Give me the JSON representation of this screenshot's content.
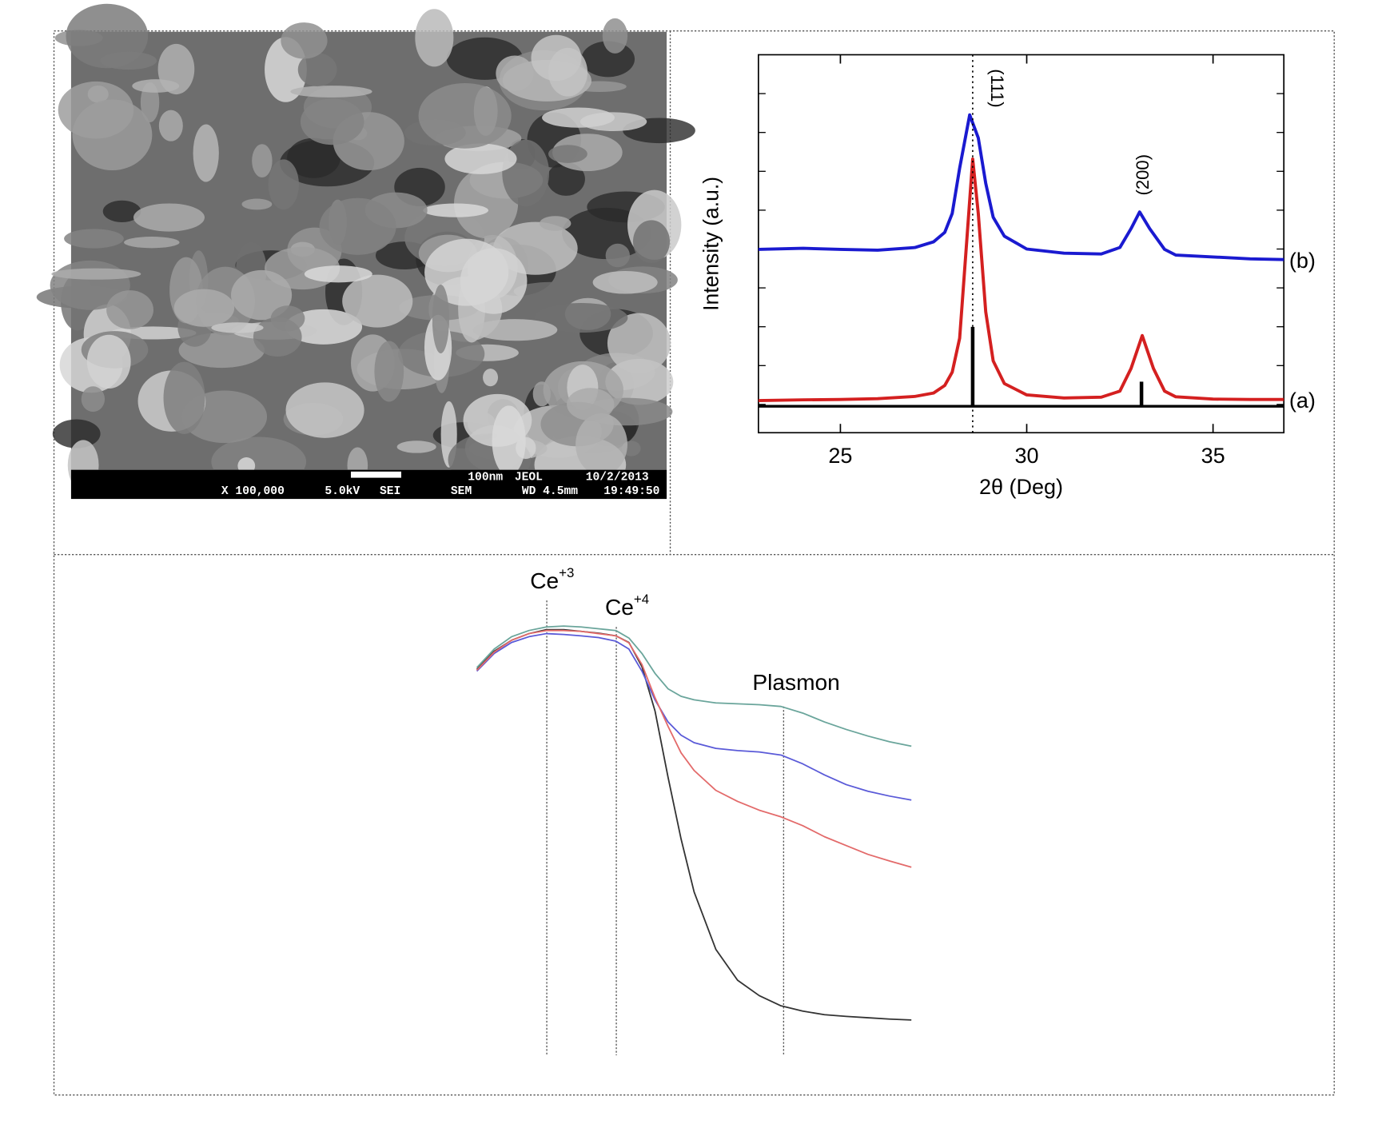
{
  "chart_data": [
    {
      "type": "line",
      "x_label": "2θ (Deg)",
      "y_label": "Intensity (a.u.)",
      "xlim": [
        22.8,
        36.9
      ],
      "ylim": [
        0,
        100
      ],
      "xticks": [
        25,
        30,
        35
      ],
      "series": [
        {
          "name": "(a)",
          "color": "#d42020",
          "x": [
            22.8,
            24,
            25,
            26,
            27,
            27.5,
            27.8,
            28,
            28.2,
            28.4,
            28.55,
            28.7,
            28.9,
            29.1,
            29.4,
            30,
            31,
            32,
            32.5,
            32.8,
            33.1,
            33.4,
            33.7,
            34,
            35,
            36,
            36.9
          ],
          "values": [
            8.5,
            8.7,
            8.8,
            9.0,
            9.6,
            10.5,
            12.5,
            16,
            25,
            52,
            72.4,
            58,
            32,
            19,
            13,
            10,
            9.2,
            9.4,
            11,
            17,
            25.7,
            17,
            11,
            9.5,
            8.9,
            8.8,
            8.8
          ]
        },
        {
          "name": "(b)",
          "color": "#1a1ad0",
          "x": [
            22.8,
            24,
            25,
            26,
            27,
            27.5,
            27.8,
            28,
            28.2,
            28.47,
            28.7,
            28.9,
            29.1,
            29.4,
            30,
            31,
            32,
            32.5,
            32.8,
            33.03,
            33.3,
            33.7,
            34,
            35,
            36,
            36.9
          ],
          "values": [
            48.5,
            48.8,
            48.5,
            48.3,
            49,
            50.5,
            53,
            58,
            70,
            84.1,
            78,
            66,
            57,
            52,
            48.6,
            47.5,
            47.3,
            49,
            54,
            58.4,
            54,
            48.5,
            47,
            46.5,
            46,
            45.8
          ]
        }
      ],
      "reference_lines": {
        "color": "#000000",
        "baseline": 7.0,
        "x": [
          28.55,
          33.08
        ],
        "values": [
          28,
          13.5
        ]
      },
      "annotations": [
        {
          "text": "(111)",
          "x": 28.55,
          "dotted_line": true
        },
        {
          "text": "(200)",
          "x": 33.1,
          "dotted_line": false
        }
      ]
    },
    {
      "type": "line",
      "xlim": [
        0,
        100
      ],
      "ylim": [
        0,
        100
      ],
      "x": [
        0,
        4,
        8,
        12,
        16,
        20,
        24,
        28,
        32,
        35,
        38,
        41,
        44,
        47,
        50,
        55,
        60,
        65,
        70,
        75,
        80,
        85,
        90,
        95,
        100
      ],
      "series": [
        {
          "color": "#333333",
          "values": [
            87.4,
            91.5,
            94,
            95.5,
            96.4,
            96.4,
            96,
            95.6,
            95,
            93.5,
            88,
            78,
            63,
            49,
            37,
            24,
            17,
            13.5,
            11.2,
            10,
            9.2,
            8.8,
            8.5,
            8.2,
            8
          ]
        },
        {
          "color": "#6aa59b",
          "values": [
            87.8,
            92,
            94.8,
            96.2,
            97,
            97.2,
            97,
            96.6,
            96.2,
            94.5,
            91,
            86.5,
            83,
            81.3,
            80.5,
            79.8,
            79.6,
            79.4,
            79,
            77.5,
            75.5,
            73.8,
            72.3,
            71,
            70
          ]
        },
        {
          "color": "#5a5ad8",
          "values": [
            87,
            91,
            93.5,
            94.8,
            95.5,
            95.3,
            95,
            94.6,
            93.8,
            92,
            87,
            80.5,
            75.5,
            72.5,
            70.8,
            69.5,
            69,
            68.7,
            68,
            66,
            63.5,
            61.3,
            59.8,
            58.7,
            57.8
          ]
        },
        {
          "color": "#e36a6a",
          "values": [
            87.2,
            91.3,
            94,
            95.5,
            96.2,
            96.2,
            96,
            95.5,
            95,
            93.4,
            88.5,
            81,
            74.5,
            68.5,
            64.5,
            60,
            57.5,
            55.5,
            54,
            52,
            49.5,
            47.5,
            45.5,
            44,
            42.6
          ]
        }
      ],
      "annotations": [
        {
          "text": "Ce",
          "superscript": "+3",
          "x": 16.1
        },
        {
          "text": "Ce",
          "superscript": "+4",
          "x": 32.1
        },
        {
          "text": "Plasmon",
          "x": 70.6
        }
      ]
    }
  ],
  "sem_image": {
    "labels": [
      "100nm",
      "JEOL",
      "10/2/2013",
      "X 100,000",
      "5.0kV",
      "SEI",
      "SEM",
      "WD 4.5mm",
      "19:49:50"
    ]
  }
}
